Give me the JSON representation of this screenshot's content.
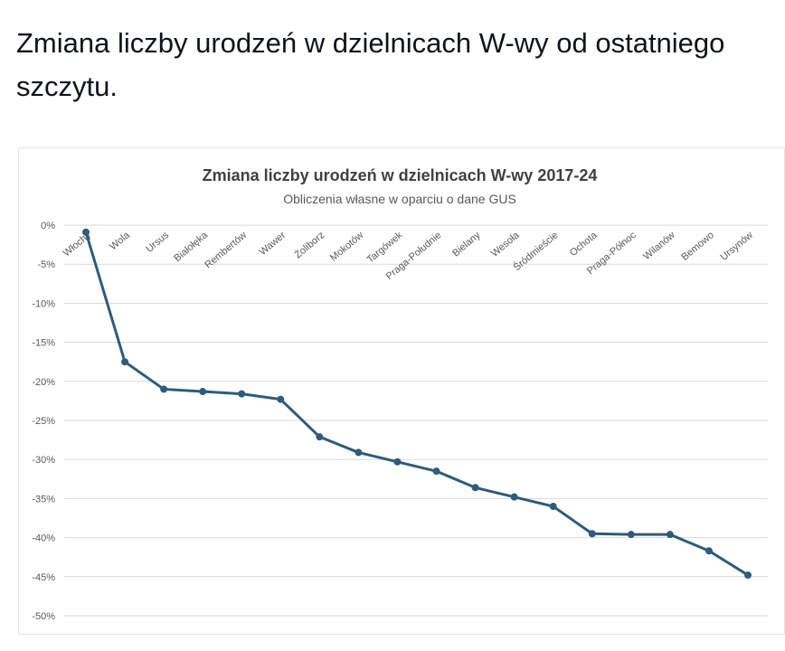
{
  "tweet": {
    "text": "Zmiana liczby urodzeń w dzielnicach W-wy od ostatniego szczytu."
  },
  "chart_data": {
    "type": "line",
    "title": "Zmiana liczby urodzeń w dzielnicach W-wy 2017-24",
    "subtitle": "Obliczenia własne w oparciu o dane GUS",
    "xlabel": "",
    "ylabel": "",
    "ylim": [
      -50,
      0
    ],
    "yticks": [
      "0%",
      "-5%",
      "-10%",
      "-15%",
      "-20%",
      "-25%",
      "-30%",
      "-35%",
      "-40%",
      "-45%",
      "-50%"
    ],
    "grid": true,
    "categories": [
      "Włochy",
      "Wola",
      "Ursus",
      "Białołęka",
      "Rembertów",
      "Wawer",
      "Żoliborz",
      "Mokotów",
      "Targówek",
      "Praga-Południe",
      "Bielany",
      "Wesoła",
      "Śródmieście",
      "Ochota",
      "Praga-Północ",
      "Wilanów",
      "Bemowo",
      "Ursynów"
    ],
    "series": [
      {
        "name": "Zmiana liczby urodzeń",
        "color": "#2e5c7a",
        "values": [
          -0.9,
          -17.5,
          -21.0,
          -21.3,
          -21.6,
          -22.3,
          -27.1,
          -29.1,
          -30.3,
          -31.5,
          -33.6,
          -34.8,
          -36.0,
          -39.5,
          -39.6,
          -39.6,
          -41.7,
          -44.8
        ]
      }
    ]
  }
}
